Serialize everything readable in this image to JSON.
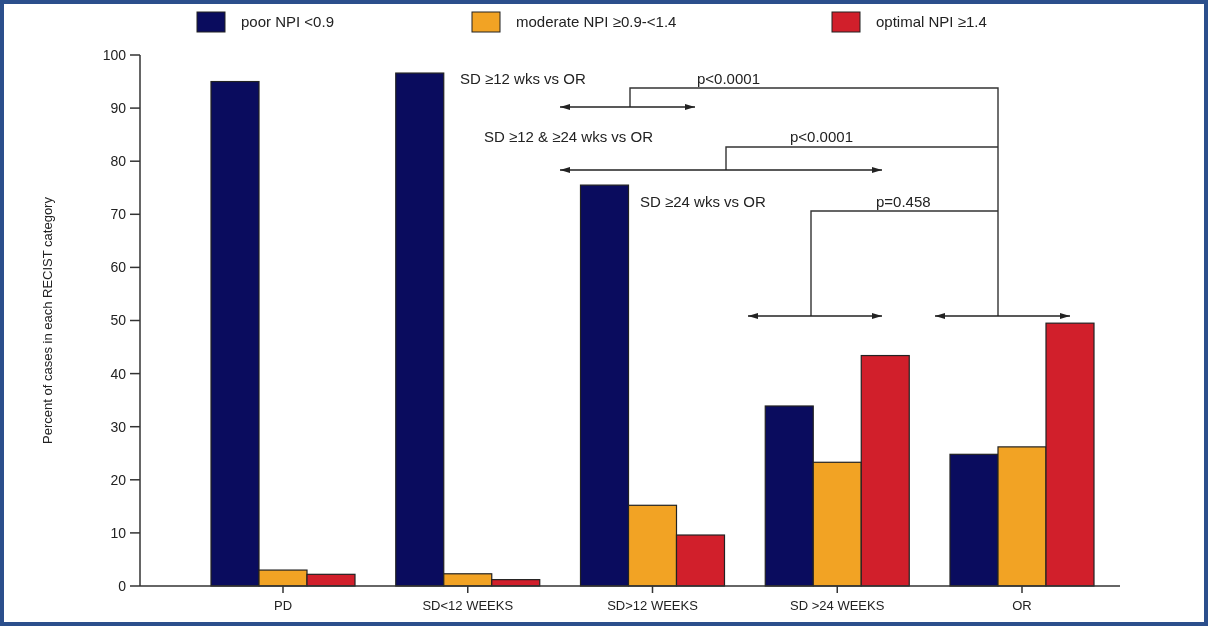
{
  "chart_data": {
    "type": "bar",
    "categories": [
      "PD",
      "SD<12 WEEKS",
      "SD>12 WEEKS",
      "SD >24 WEEKS",
      "OR"
    ],
    "series": [
      {
        "name": "poor NPI <0.9",
        "color": "#0a0c5e",
        "values": [
          95.0,
          96.6,
          75.5,
          33.9,
          24.8
        ]
      },
      {
        "name": "moderate NPI ≥0.9-<1.4",
        "color": "#f2a324",
        "values": [
          3.0,
          2.3,
          15.2,
          23.3,
          26.2
        ]
      },
      {
        "name": "optimal NPI ≥1.4",
        "color": "#d11f2b",
        "values": [
          2.2,
          1.2,
          9.6,
          43.4,
          49.5
        ]
      }
    ],
    "ylabel": "Percent of cases in each RECIST category",
    "ylim": [
      0,
      100
    ],
    "yticks": [
      0,
      10,
      20,
      30,
      40,
      50,
      60,
      70,
      80,
      90,
      100
    ],
    "legend": "top",
    "grid": false,
    "annotations": [
      "SD ≥12 wks vs OR",
      "p<0.0001",
      "SD ≥12 & ≥24 wks vs OR",
      "p<0.0001",
      "SD ≥24 wks vs OR",
      "p=0.458"
    ]
  }
}
